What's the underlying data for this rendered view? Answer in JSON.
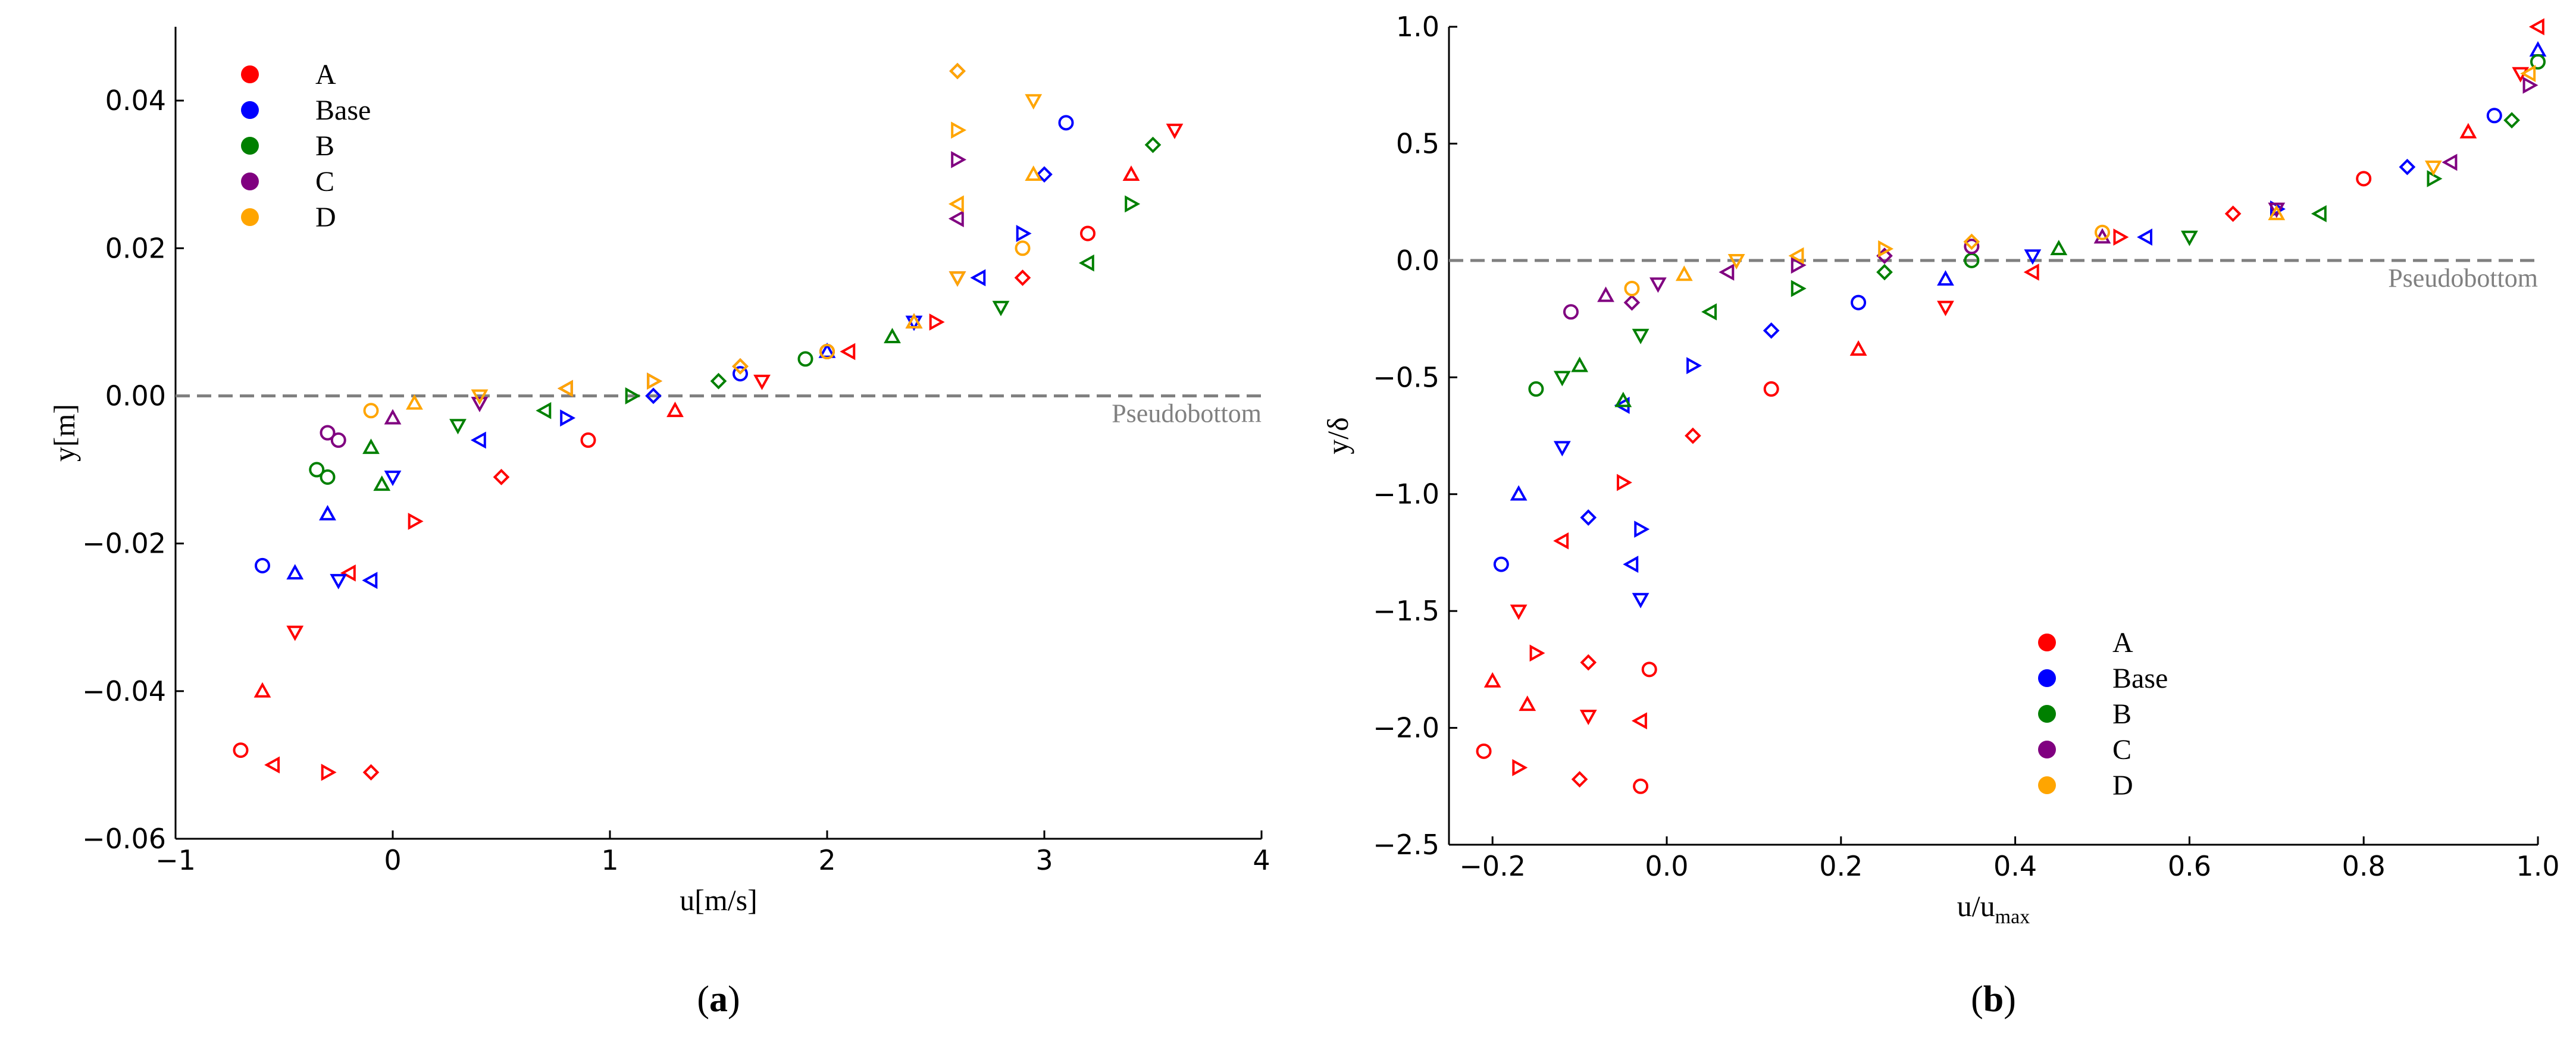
{
  "colors": {
    "A": "#ff0000",
    "Base": "#0000ff",
    "B": "#008000",
    "C": "#800080",
    "D": "#ffa500",
    "pseudobottom_line": "#808080"
  },
  "chart_data": [
    {
      "type": "scatter",
      "panel_label": "a",
      "xlabel": "u[m/s]",
      "ylabel": "y[m]",
      "xlim": [
        -1,
        4
      ],
      "ylim": [
        -0.06,
        0.05
      ],
      "xticks": [
        -1,
        0,
        1,
        2,
        3,
        4
      ],
      "yticks": [
        -0.06,
        -0.04,
        -0.02,
        0.0,
        0.02,
        0.04
      ],
      "xtick_labels": [
        "−1",
        "0",
        "1",
        "2",
        "3",
        "4"
      ],
      "ytick_labels": [
        "−0.06",
        "−0.04",
        "−0.02",
        "0.00",
        "0.02",
        "0.04"
      ],
      "grid": false,
      "legend_position": "top-left",
      "legend": [
        "A",
        "Base",
        "B",
        "C",
        "D"
      ],
      "reference_line": {
        "y": 0.0,
        "style": "dashed",
        "label": "Pseudobottom"
      },
      "series": [
        {
          "name": "A",
          "points": [
            [
              -0.7,
              -0.048
            ],
            [
              -0.6,
              -0.04
            ],
            [
              -0.45,
              -0.032
            ],
            [
              -0.2,
              -0.024
            ],
            [
              0.1,
              -0.017
            ],
            [
              0.5,
              -0.011
            ],
            [
              0.9,
              -0.006
            ],
            [
              1.3,
              -0.002
            ],
            [
              1.7,
              0.002
            ],
            [
              2.1,
              0.006
            ],
            [
              2.5,
              0.01
            ],
            [
              2.9,
              0.016
            ],
            [
              3.2,
              0.022
            ],
            [
              3.4,
              0.03
            ],
            [
              3.6,
              0.036
            ],
            [
              -0.55,
              -0.05
            ],
            [
              -0.3,
              -0.051
            ],
            [
              -0.1,
              -0.051
            ]
          ]
        },
        {
          "name": "Base",
          "points": [
            [
              -0.6,
              -0.023
            ],
            [
              -0.3,
              -0.016
            ],
            [
              0.0,
              -0.011
            ],
            [
              0.4,
              -0.006
            ],
            [
              0.8,
              -0.003
            ],
            [
              1.2,
              0.0
            ],
            [
              1.6,
              0.003
            ],
            [
              2.0,
              0.006
            ],
            [
              2.4,
              0.01
            ],
            [
              2.7,
              0.016
            ],
            [
              2.9,
              0.022
            ],
            [
              3.0,
              0.03
            ],
            [
              3.1,
              0.037
            ],
            [
              -0.45,
              -0.024
            ],
            [
              -0.25,
              -0.025
            ],
            [
              -0.1,
              -0.025
            ]
          ]
        },
        {
          "name": "B",
          "points": [
            [
              -0.35,
              -0.01
            ],
            [
              -0.1,
              -0.007
            ],
            [
              0.3,
              -0.004
            ],
            [
              0.7,
              -0.002
            ],
            [
              1.1,
              0.0
            ],
            [
              1.5,
              0.002
            ],
            [
              1.9,
              0.005
            ],
            [
              2.3,
              0.008
            ],
            [
              2.8,
              0.012
            ],
            [
              3.2,
              0.018
            ],
            [
              3.4,
              0.026
            ],
            [
              3.5,
              0.034
            ],
            [
              -0.3,
              -0.011
            ],
            [
              -0.05,
              -0.012
            ]
          ]
        },
        {
          "name": "C",
          "points": [
            [
              -0.3,
              -0.005
            ],
            [
              0.0,
              -0.003
            ],
            [
              0.4,
              -0.001
            ],
            [
              0.8,
              0.001
            ],
            [
              1.2,
              0.002
            ],
            [
              1.6,
              0.004
            ],
            [
              2.0,
              0.006
            ],
            [
              2.4,
              0.01
            ],
            [
              2.6,
              0.016
            ],
            [
              2.6,
              0.024
            ],
            [
              2.6,
              0.032
            ],
            [
              2.6,
              0.044
            ],
            [
              -0.25,
              -0.006
            ]
          ]
        },
        {
          "name": "D",
          "points": [
            [
              -0.1,
              -0.002
            ],
            [
              0.1,
              -0.001
            ],
            [
              0.4,
              0.0
            ],
            [
              0.8,
              0.001
            ],
            [
              1.2,
              0.002
            ],
            [
              1.6,
              0.004
            ],
            [
              2.0,
              0.006
            ],
            [
              2.4,
              0.01
            ],
            [
              2.6,
              0.016
            ],
            [
              2.6,
              0.026
            ],
            [
              2.6,
              0.036
            ],
            [
              2.6,
              0.044
            ],
            [
              2.9,
              0.02
            ],
            [
              2.95,
              0.03
            ],
            [
              2.95,
              0.04
            ]
          ]
        }
      ]
    },
    {
      "type": "scatter",
      "panel_label": "b",
      "xlabel_base": "u/u",
      "xlabel_sub": "max",
      "ylabel": "y/δ",
      "xlim": [
        -0.25,
        1.0
      ],
      "ylim": [
        -2.5,
        1.0
      ],
      "xticks": [
        -0.2,
        0.0,
        0.2,
        0.4,
        0.6,
        0.8,
        1.0
      ],
      "yticks": [
        -2.5,
        -2.0,
        -1.5,
        -1.0,
        -0.5,
        0.0,
        0.5,
        1.0
      ],
      "xtick_labels": [
        "−0.2",
        "0.0",
        "0.2",
        "0.4",
        "0.6",
        "0.8",
        "1.0"
      ],
      "ytick_labels": [
        "−2.5",
        "−2.0",
        "−1.5",
        "−1.0",
        "−0.5",
        "0.0",
        "0.5",
        "1.0"
      ],
      "grid": false,
      "legend_position": "bottom-right",
      "legend": [
        "A",
        "Base",
        "B",
        "C",
        "D"
      ],
      "reference_line": {
        "y": 0.0,
        "style": "dashed",
        "label": "Pseudobottom"
      },
      "series": [
        {
          "name": "A",
          "points": [
            [
              -0.21,
              -2.1
            ],
            [
              -0.2,
              -1.8
            ],
            [
              -0.17,
              -1.5
            ],
            [
              -0.12,
              -1.2
            ],
            [
              -0.05,
              -0.95
            ],
            [
              0.03,
              -0.75
            ],
            [
              0.12,
              -0.55
            ],
            [
              0.22,
              -0.38
            ],
            [
              0.32,
              -0.2
            ],
            [
              0.42,
              -0.05
            ],
            [
              0.52,
              0.1
            ],
            [
              0.65,
              0.2
            ],
            [
              0.8,
              0.35
            ],
            [
              0.92,
              0.55
            ],
            [
              0.98,
              0.8
            ],
            [
              1.0,
              1.0
            ],
            [
              -0.17,
              -2.17
            ],
            [
              -0.1,
              -2.22
            ],
            [
              -0.03,
              -2.25
            ],
            [
              -0.16,
              -1.9
            ],
            [
              -0.09,
              -1.95
            ],
            [
              -0.03,
              -1.97
            ],
            [
              -0.15,
              -1.68
            ],
            [
              -0.09,
              -1.72
            ],
            [
              -0.02,
              -1.75
            ]
          ]
        },
        {
          "name": "Base",
          "points": [
            [
              -0.19,
              -1.3
            ],
            [
              -0.17,
              -1.0
            ],
            [
              -0.12,
              -0.8
            ],
            [
              -0.05,
              -0.62
            ],
            [
              0.03,
              -0.45
            ],
            [
              0.12,
              -0.3
            ],
            [
              0.22,
              -0.18
            ],
            [
              0.32,
              -0.08
            ],
            [
              0.42,
              0.02
            ],
            [
              0.55,
              0.1
            ],
            [
              0.7,
              0.22
            ],
            [
              0.85,
              0.4
            ],
            [
              0.95,
              0.62
            ],
            [
              1.0,
              0.9
            ],
            [
              -0.03,
              -1.45
            ],
            [
              -0.04,
              -1.3
            ],
            [
              -0.03,
              -1.15
            ],
            [
              -0.09,
              -1.1
            ]
          ]
        },
        {
          "name": "B",
          "points": [
            [
              -0.15,
              -0.55
            ],
            [
              -0.1,
              -0.45
            ],
            [
              -0.03,
              -0.32
            ],
            [
              0.05,
              -0.22
            ],
            [
              0.15,
              -0.12
            ],
            [
              0.25,
              -0.05
            ],
            [
              0.35,
              0.0
            ],
            [
              0.45,
              0.05
            ],
            [
              0.6,
              0.1
            ],
            [
              0.75,
              0.2
            ],
            [
              0.88,
              0.35
            ],
            [
              0.97,
              0.6
            ],
            [
              1.0,
              0.85
            ],
            [
              -0.05,
              -0.6
            ],
            [
              -0.12,
              -0.5
            ]
          ]
        },
        {
          "name": "C",
          "points": [
            [
              -0.11,
              -0.22
            ],
            [
              -0.07,
              -0.15
            ],
            [
              -0.01,
              -0.1
            ],
            [
              0.07,
              -0.05
            ],
            [
              0.15,
              -0.02
            ],
            [
              0.25,
              0.02
            ],
            [
              0.35,
              0.06
            ],
            [
              0.5,
              0.1
            ],
            [
              0.7,
              0.22
            ],
            [
              0.9,
              0.42
            ],
            [
              0.99,
              0.75
            ],
            [
              -0.04,
              -0.18
            ]
          ]
        },
        {
          "name": "D",
          "points": [
            [
              -0.04,
              -0.12
            ],
            [
              0.02,
              -0.06
            ],
            [
              0.08,
              0.0
            ],
            [
              0.15,
              0.02
            ],
            [
              0.25,
              0.05
            ],
            [
              0.35,
              0.08
            ],
            [
              0.5,
              0.12
            ],
            [
              0.7,
              0.2
            ],
            [
              0.88,
              0.4
            ],
            [
              0.99,
              0.8
            ]
          ]
        }
      ]
    }
  ]
}
